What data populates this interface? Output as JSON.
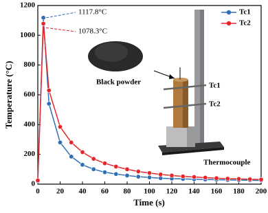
{
  "chart_data": {
    "type": "line",
    "x_label": "Time (s)",
    "y_label": "Temperature (°C)",
    "x": [
      0,
      5,
      10,
      20,
      30,
      40,
      50,
      60,
      70,
      80,
      90,
      100,
      110,
      120,
      130,
      140,
      150,
      160,
      170,
      180,
      190,
      200
    ],
    "series": [
      {
        "name": "Tc1",
        "color": "#2f6fb5",
        "values": [
          20,
          1117.8,
          540,
          280,
          185,
          130,
          100,
          80,
          68,
          58,
          50,
          45,
          40,
          37,
          35,
          33,
          31,
          30,
          28,
          27,
          26,
          25
        ]
      },
      {
        "name": "Tc2",
        "color": "#e8262a",
        "values": [
          25,
          1078.3,
          630,
          385,
          280,
          215,
          170,
          140,
          118,
          100,
          85,
          75,
          65,
          58,
          52,
          48,
          44,
          40,
          37,
          35,
          33,
          31
        ]
      }
    ],
    "xlim": [
      0,
      200
    ],
    "xticks": [
      0,
      20,
      40,
      60,
      80,
      100,
      120,
      140,
      160,
      180,
      200
    ],
    "ylim": [
      0,
      1200
    ],
    "yticks": [
      0,
      200,
      400,
      600,
      800,
      1000,
      1200
    ],
    "legend": "upper right",
    "annotations": [
      "1117.8°C",
      "1078.3°C"
    ],
    "inset_labels": [
      "Black powder",
      "Tc1",
      "Tc2",
      "Thermocouple"
    ]
  }
}
